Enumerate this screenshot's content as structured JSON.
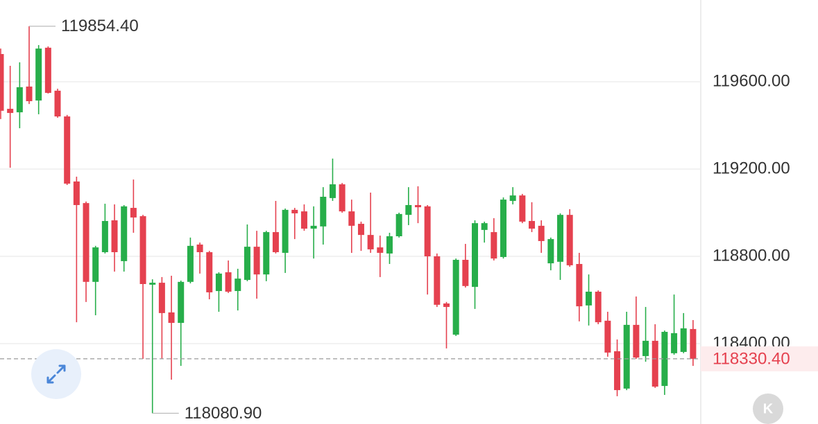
{
  "chart_data": {
    "type": "candlestick",
    "up_color": "#27ae4a",
    "down_color": "#e5414f",
    "ylim": [
      118031.7,
      119974.6
    ],
    "yticks": [
      {
        "value": 118400,
        "label": "118400.00"
      },
      {
        "value": 118800,
        "label": "118800.00"
      },
      {
        "value": 119200,
        "label": "119200.00"
      },
      {
        "value": 119600,
        "label": "119600.00"
      }
    ],
    "grid": true,
    "open": [
      119727,
      119476,
      119460,
      119578,
      119514,
      119756,
      119559,
      119441,
      119143,
      119044,
      118683,
      118819,
      118965,
      118778,
      119022,
      118984,
      118670,
      118679,
      118543,
      118495,
      118683,
      118854,
      118819,
      118641,
      118727,
      118641,
      118692,
      118844,
      118717,
      118911,
      118816,
      119013,
      119006,
      118927,
      118937,
      119067,
      119130,
      119006,
      118949,
      118898,
      118841,
      118813,
      118892,
      118990,
      119035,
      119029,
      118800,
      118584,
      118441,
      118784,
      118660,
      118921,
      118911,
      118797,
      119054,
      119079,
      118962,
      118940,
      118768,
      118775,
      118990,
      118765,
      118575,
      118638,
      118505,
      118365,
      118194,
      118486,
      118343,
      118413,
      118206,
      118356,
      118362,
      118467
    ],
    "high": [
      119752,
      119673,
      119689,
      119854.4,
      119768,
      119762,
      119568,
      119448,
      119165,
      119051,
      118848,
      119041,
      119038,
      119035,
      119152,
      118990,
      118695,
      118705,
      118711,
      118689,
      118886,
      118863,
      118825,
      118727,
      118781,
      118743,
      118946,
      118917,
      118917,
      119054,
      119019,
      119022,
      119038,
      119029,
      119117,
      119248,
      119136,
      119060,
      118959,
      119092,
      118895,
      118908,
      119000,
      119117,
      119121,
      119035,
      118813,
      118591,
      118790,
      118857,
      118965,
      118959,
      118975,
      119070,
      119117,
      119086,
      119048,
      118965,
      118886,
      118997,
      119016,
      118816,
      118717,
      118644,
      118546,
      118419,
      118546,
      118616,
      118568,
      118489,
      118460,
      118625,
      118540,
      118508
    ],
    "low": [
      119429,
      119206,
      119387,
      119498,
      119451,
      119546,
      119435,
      119127,
      118498,
      118591,
      118530,
      118813,
      118730,
      118730,
      118908,
      118330,
      118080.9,
      118330,
      118235,
      118298,
      118676,
      118721,
      118603,
      118546,
      118632,
      118552,
      118686,
      118606,
      118686,
      118813,
      118724,
      118879,
      118917,
      118790,
      118854,
      119054,
      119000,
      118816,
      118825,
      118816,
      118705,
      118765,
      118886,
      118943,
      118952,
      118625,
      118568,
      118378,
      118435,
      118657,
      118559,
      118863,
      118781,
      118790,
      119038,
      118952,
      118911,
      118816,
      118736,
      118692,
      118752,
      118502,
      118483,
      118489,
      118340,
      118159,
      118187,
      118330,
      118317,
      118197,
      118165,
      118349,
      118356,
      118298
    ],
    "close": [
      119467,
      119457,
      119575,
      119511,
      119752,
      119549,
      119441,
      119133,
      119035,
      118683,
      118841,
      118962,
      118819,
      119029,
      118978,
      118673,
      118679,
      118540,
      118495,
      118683,
      118848,
      118819,
      118635,
      118721,
      118638,
      118698,
      118844,
      118717,
      118911,
      118819,
      119013,
      118997,
      118927,
      118940,
      119073,
      119130,
      119006,
      118940,
      118898,
      118832,
      118816,
      118892,
      118994,
      119035,
      119025,
      118800,
      118578,
      118568,
      118784,
      118664,
      118952,
      118952,
      118790,
      119060,
      119079,
      118959,
      118927,
      118870,
      118879,
      118990,
      118759,
      118571,
      118638,
      118498,
      118359,
      118187,
      118486,
      118336,
      118413,
      118203,
      118454,
      118448,
      118470,
      118330.4
    ],
    "max_marker": {
      "value": 119854.4,
      "label": "119854.40"
    },
    "min_marker": {
      "value": 118080.9,
      "label": "118080.90"
    },
    "last_price": {
      "value": 118330.4,
      "label": "118330.40"
    }
  },
  "ui": {
    "k_button": "K"
  }
}
